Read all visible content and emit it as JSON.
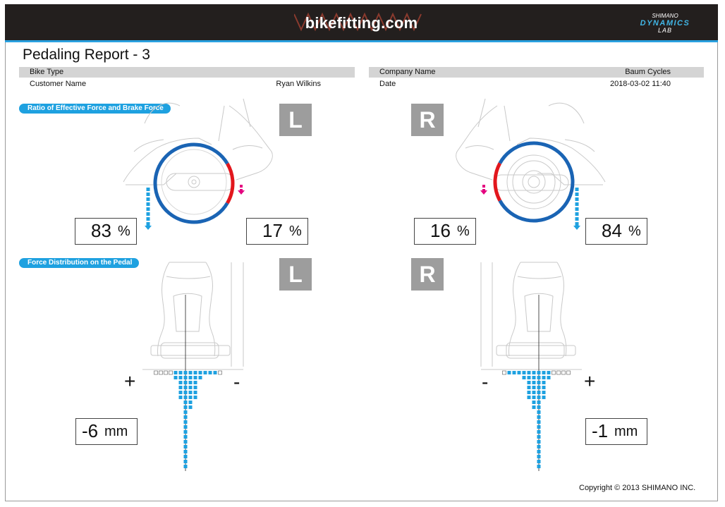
{
  "header": {
    "site_title": "bikefitting.com",
    "brand_line1": "SHIMANO",
    "brand_line2": "DYNAMICS",
    "brand_line3": "LAB"
  },
  "report": {
    "title": "Pedaling Report - 3"
  },
  "info": {
    "bike_type_label": "Bike Type",
    "bike_type_value": "",
    "customer_name_label": "Customer Name",
    "customer_name_value": "Ryan Wilkins",
    "company_name_label": "Company Name",
    "company_name_value": "Baum Cycles",
    "date_label": "Date",
    "date_value": "2018-03-02 11:40"
  },
  "sections": {
    "ratio_title": "Ratio of Effective Force and Brake Force",
    "distribution_title": "Force Distribution on the Pedal"
  },
  "sides": {
    "left_label": "L",
    "right_label": "R"
  },
  "ratio": {
    "left_effective_value": "83",
    "left_brake_value": "17",
    "right_brake_value": "16",
    "right_effective_value": "84",
    "unit": "%",
    "left_effective_fraction": 0.83,
    "right_effective_fraction": 0.84
  },
  "distribution": {
    "left_offset_value": "-6",
    "right_offset_value": "-1",
    "unit": "mm",
    "plus_sign": "+",
    "minus_sign": "-"
  },
  "colors": {
    "effective": "#1a64b4",
    "brake": "#e2171d",
    "accent": "#1ea1e0",
    "brake_arrow": "#e4007f"
  },
  "footer": {
    "copyright": "Copyright © 2013 SHIMANO INC."
  }
}
